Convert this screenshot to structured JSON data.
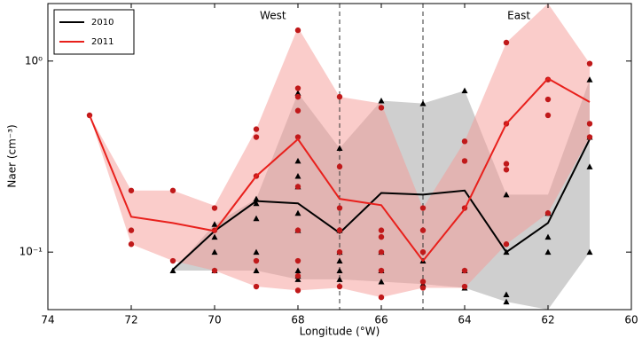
{
  "chart_data": {
    "type": "line",
    "xlabel": "Longitude (°W)",
    "ylabel": "Naer (cm⁻³)",
    "xlim": [
      74,
      60
    ],
    "xticks": [
      74,
      72,
      70,
      68,
      66,
      64,
      62,
      60
    ],
    "ylim": [
      0.05,
      2
    ],
    "log_y": true,
    "yticks": [
      {
        "value": 0.1,
        "label": "10⁻¹"
      },
      {
        "value": 1,
        "label": "10⁰"
      }
    ],
    "legend": "upper left",
    "vlines": [
      67,
      65
    ],
    "annotations": [
      {
        "text": "West",
        "x": 68.6
      },
      {
        "text": "East",
        "x": 62.7
      }
    ],
    "series": [
      {
        "name": "2010",
        "color": "#000000",
        "band_color": "#a0a0a0",
        "marker": "triangle",
        "x": [
          71,
          70,
          69,
          68,
          67,
          66,
          65,
          64,
          63,
          62,
          61
        ],
        "values": [
          0.081,
          0.129,
          0.185,
          0.18,
          0.126,
          0.204,
          0.2,
          0.21,
          0.1,
          0.142,
          0.39
        ],
        "band_upper": [
          0.08,
          0.14,
          0.19,
          0.68,
          0.35,
          0.62,
          0.6,
          0.7,
          0.2,
          0.2,
          0.8
        ],
        "band_lower": [
          0.08,
          0.08,
          0.08,
          0.072,
          0.072,
          0.07,
          0.068,
          0.065,
          0.055,
          0.05,
          0.1
        ],
        "points_x": [
          71,
          70,
          70,
          70,
          70,
          69,
          69,
          69,
          69,
          69,
          68,
          68,
          68,
          68,
          68,
          68,
          68,
          68,
          68,
          67,
          67,
          67,
          67,
          67,
          67,
          66,
          66,
          66,
          66,
          65,
          65,
          65,
          64,
          64,
          64,
          63,
          63,
          63,
          63,
          62,
          62,
          62,
          61,
          61,
          61,
          61
        ],
        "points_y": [
          0.08,
          0.14,
          0.12,
          0.1,
          0.08,
          0.19,
          0.18,
          0.15,
          0.1,
          0.08,
          0.68,
          0.3,
          0.25,
          0.22,
          0.16,
          0.13,
          0.08,
          0.075,
          0.072,
          0.35,
          0.13,
          0.1,
          0.09,
          0.08,
          0.072,
          0.62,
          0.1,
          0.08,
          0.07,
          0.6,
          0.09,
          0.068,
          0.7,
          0.08,
          0.065,
          0.2,
          0.1,
          0.06,
          0.055,
          0.16,
          0.12,
          0.1,
          0.8,
          0.4,
          0.28,
          0.1
        ]
      },
      {
        "name": "2011",
        "color": "#e8201c",
        "band_color": "#f59a96",
        "marker": "circle",
        "x": [
          73,
          72,
          71,
          70,
          69,
          68,
          67,
          66,
          65,
          64,
          63,
          62,
          61
        ],
        "values": [
          0.52,
          0.153,
          0.142,
          0.129,
          0.25,
          0.39,
          0.19,
          0.176,
          0.09,
          0.168,
          0.47,
          0.81,
          0.61
        ],
        "band_upper": [
          0.52,
          0.21,
          0.21,
          0.175,
          0.44,
          1.5,
          0.65,
          0.6,
          0.17,
          0.38,
          1.25,
          2,
          0.97
        ],
        "band_lower": [
          0.52,
          0.11,
          0.09,
          0.08,
          0.066,
          0.063,
          0.065,
          0.058,
          0.065,
          0.065,
          0.11,
          0.16,
          0.4
        ],
        "points_x": [
          73,
          72,
          72,
          72,
          71,
          71,
          70,
          70,
          70,
          69,
          69,
          69,
          69,
          69,
          68,
          68,
          68,
          68,
          68,
          68,
          68,
          68,
          68,
          68,
          67,
          67,
          67,
          67,
          67,
          67,
          66,
          66,
          66,
          66,
          66,
          66,
          65,
          65,
          65,
          65,
          65,
          64,
          64,
          64,
          64,
          64,
          63,
          63,
          63,
          63,
          63,
          62,
          62,
          62,
          62,
          61,
          61,
          61
        ],
        "points_y": [
          0.52,
          0.21,
          0.13,
          0.11,
          0.21,
          0.09,
          0.17,
          0.13,
          0.08,
          0.44,
          0.4,
          0.25,
          0.09,
          0.066,
          1.45,
          0.72,
          0.65,
          0.55,
          0.4,
          0.22,
          0.13,
          0.09,
          0.075,
          0.063,
          0.65,
          0.28,
          0.17,
          0.13,
          0.1,
          0.066,
          0.57,
          0.13,
          0.12,
          0.1,
          0.08,
          0.058,
          0.17,
          0.13,
          0.1,
          0.07,
          0.065,
          0.38,
          0.3,
          0.17,
          0.08,
          0.066,
          1.25,
          0.47,
          0.29,
          0.27,
          0.11,
          0.8,
          0.63,
          0.52,
          0.16,
          0.97,
          0.47,
          0.4
        ]
      }
    ]
  }
}
